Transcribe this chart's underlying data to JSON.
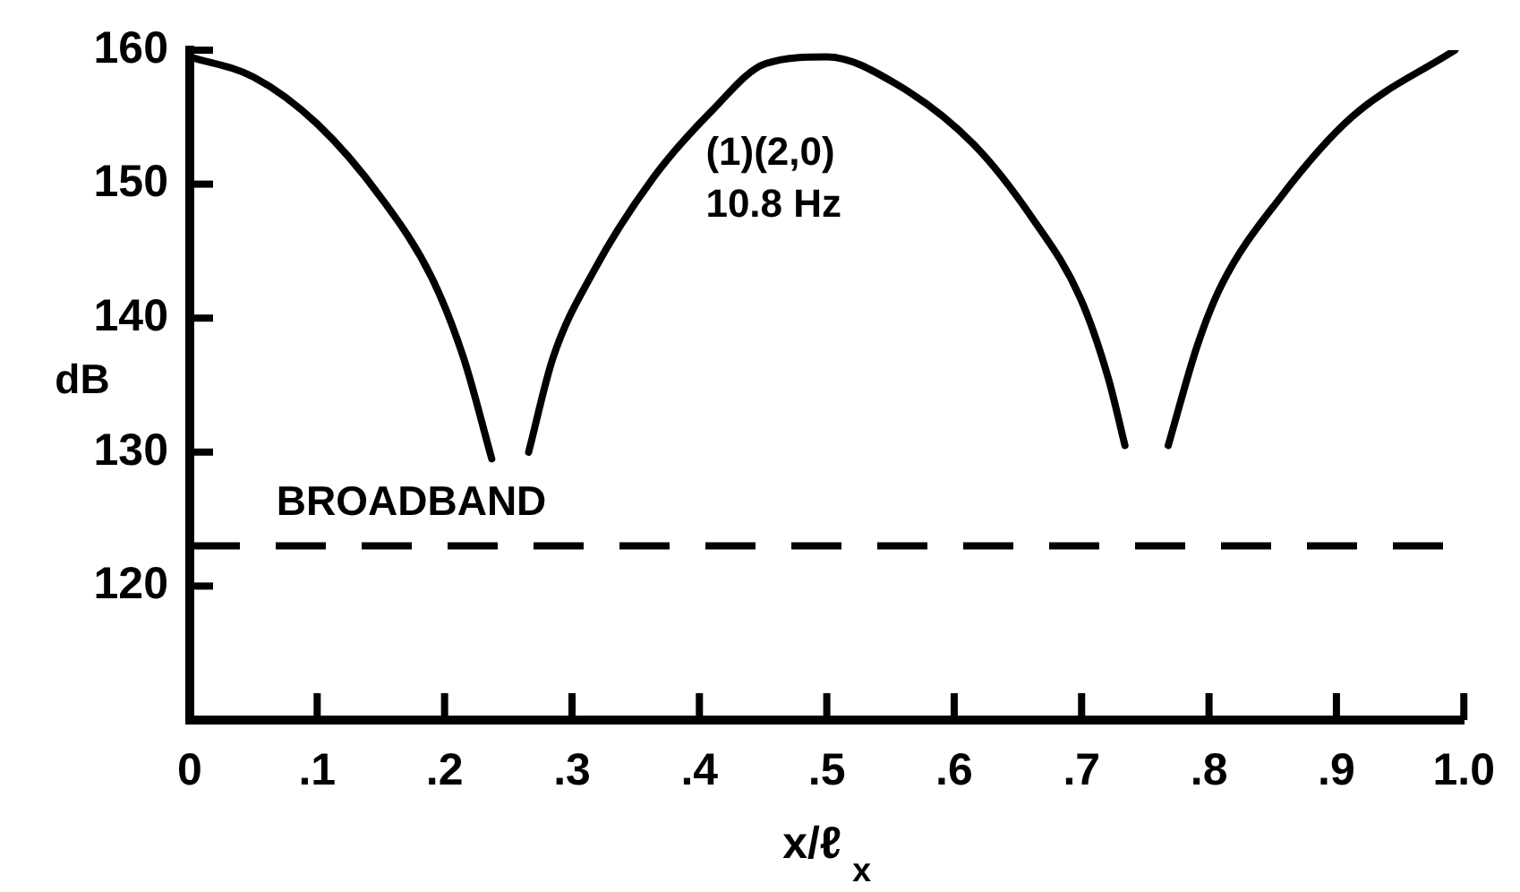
{
  "chart_data": {
    "type": "line",
    "xlabel": "x/ℓ$_{x}$",
    "ylabel": "dB",
    "series": [
      {
        "color": "#000000",
        "x": [
          0,
          0.05,
          0.1,
          0.15,
          0.19,
          0.215,
          0.237,
          0.25,
          0.266,
          0.285,
          0.317,
          0.364,
          0.41,
          0.452,
          0.5,
          0.554,
          0.615,
          0.661,
          0.699,
          0.721,
          0.734,
          0.75,
          0.768,
          0.791,
          0.81,
          0.856,
          0.912,
          0.993
        ],
        "values": [
          159.5,
          158,
          154.5,
          149,
          143,
          137,
          129.5,
          null,
          130,
          137,
          143.5,
          150.5,
          155.5,
          159,
          159.5,
          157.5,
          153,
          147.5,
          141.5,
          135.5,
          130.5,
          null,
          130.5,
          138,
          142.5,
          149,
          155,
          160
        ]
      }
    ],
    "xlim": [
      0,
      1
    ],
    "ylim": [
      110,
      160
    ],
    "xticks": [
      0,
      {
        "value": 0.1,
        "label": ".1"
      },
      {
        "value": 0.2,
        "label": ".2"
      },
      {
        "value": 0.3,
        "label": ".3"
      },
      {
        "value": 0.4,
        "label": ".4"
      },
      {
        "value": 0.5,
        "label": ".5"
      },
      {
        "value": 0.6,
        "label": ".6"
      },
      {
        "value": 0.7,
        "label": ".7"
      },
      {
        "value": 0.8,
        "label": ".8"
      },
      {
        "value": 0.9,
        "label": ".9"
      },
      {
        "value": 1,
        "label": "1.0"
      }
    ],
    "yticks": [
      120,
      130,
      140,
      150,
      160
    ],
    "ref_lines": [
      {
        "axis": "y",
        "value": 123,
        "label": "BROADBAND",
        "color": "#000000",
        "line_style": "dashed"
      }
    ],
    "annotations": [
      "(1)(2,0)",
      "10.8 Hz"
    ],
    "grid": false,
    "legend": false,
    "marker": "none",
    "line_style": "solid"
  }
}
